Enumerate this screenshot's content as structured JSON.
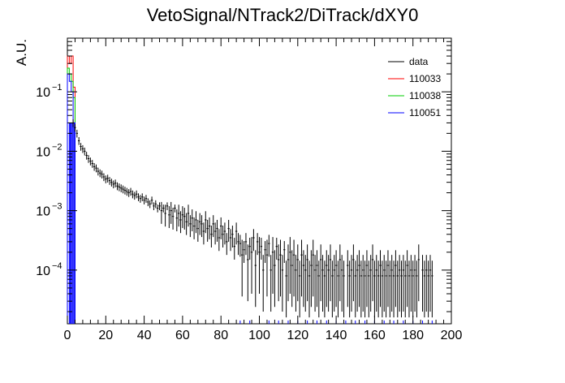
{
  "chart_data": {
    "type": "scatter",
    "title": "VetoSignal/NTrack2/DiTrack/dXY0",
    "xlabel": "",
    "ylabel": "A.U.",
    "xlim": [
      0,
      200
    ],
    "ylim": [
      1.25e-05,
      0.8
    ],
    "yscale": "log",
    "x_ticks": [
      "0",
      "20",
      "40",
      "60",
      "80",
      "100",
      "120",
      "140",
      "160",
      "180",
      "200"
    ],
    "y_ticks": [
      {
        "value": 0.1,
        "base": "10",
        "exp": "−1"
      },
      {
        "value": 0.01,
        "base": "10",
        "exp": "−2"
      },
      {
        "value": 0.001,
        "base": "10",
        "exp": "−3"
      },
      {
        "value": 0.0001,
        "base": "10",
        "exp": "−4"
      }
    ],
    "legend_position": "top-right",
    "legend": [
      {
        "name": "data",
        "color": "#000000"
      },
      {
        "name": "110033",
        "color": "#ff0000"
      },
      {
        "name": "110038",
        "color": "#00cc00"
      },
      {
        "name": "110051",
        "color": "#0000ff"
      }
    ],
    "series": [
      {
        "name": "data",
        "color": "#000000",
        "style": "errorbar",
        "points": [
          [
            3,
            0.03
          ],
          [
            4,
            0.025
          ],
          [
            5,
            0.02
          ],
          [
            6,
            0.015
          ],
          [
            7,
            0.012
          ],
          [
            8,
            0.011
          ],
          [
            9,
            0.01
          ],
          [
            10,
            0.0085
          ],
          [
            11,
            0.0075
          ],
          [
            12,
            0.0068
          ],
          [
            13,
            0.0062
          ],
          [
            14,
            0.0055
          ],
          [
            15,
            0.0052
          ],
          [
            16,
            0.0046
          ],
          [
            17,
            0.0043
          ],
          [
            18,
            0.0041
          ],
          [
            19,
            0.0037
          ],
          [
            20,
            0.0034
          ],
          [
            21,
            0.0035
          ],
          [
            22,
            0.0032
          ],
          [
            23,
            0.003
          ],
          [
            24,
            0.0028
          ],
          [
            25,
            0.0029
          ],
          [
            26,
            0.0026
          ],
          [
            27,
            0.0025
          ],
          [
            28,
            0.0024
          ],
          [
            29,
            0.0023
          ],
          [
            30,
            0.0022
          ],
          [
            31,
            0.0021
          ],
          [
            32,
            0.002
          ],
          [
            33,
            0.0021
          ],
          [
            34,
            0.0019
          ],
          [
            35,
            0.0018
          ],
          [
            36,
            0.0019
          ],
          [
            37,
            0.0017
          ],
          [
            38,
            0.0016
          ],
          [
            39,
            0.0017
          ],
          [
            40,
            0.0015
          ],
          [
            41,
            0.0016
          ],
          [
            42,
            0.0014
          ],
          [
            43,
            0.0013
          ],
          [
            44,
            0.0015
          ],
          [
            45,
            0.0012
          ],
          [
            46,
            0.0013
          ],
          [
            47,
            0.0011
          ],
          [
            48,
            0.0012
          ],
          [
            49,
            0.001
          ],
          [
            50,
            0.0011
          ],
          [
            51,
            0.0009
          ],
          [
            52,
            0.0012
          ],
          [
            53,
            0.00085
          ],
          [
            54,
            0.001
          ],
          [
            55,
            0.0008
          ],
          [
            56,
            0.0011
          ],
          [
            57,
            0.00075
          ],
          [
            58,
            0.0009
          ],
          [
            59,
            0.0007
          ],
          [
            60,
            0.00085
          ],
          [
            61,
            0.0008
          ],
          [
            62,
            0.00065
          ],
          [
            63,
            0.0009
          ],
          [
            64,
            0.0006
          ],
          [
            65,
            0.00075
          ],
          [
            66,
            0.00055
          ],
          [
            67,
            0.0007
          ],
          [
            68,
            0.0005
          ],
          [
            69,
            0.00065
          ],
          [
            70,
            0.0006
          ],
          [
            71,
            0.00045
          ],
          [
            72,
            0.0007
          ],
          [
            73,
            0.0005
          ],
          [
            74,
            0.00055
          ],
          [
            75,
            0.0004
          ],
          [
            76,
            0.0006
          ],
          [
            77,
            0.00045
          ],
          [
            78,
            0.0005
          ],
          [
            79,
            0.00035
          ],
          [
            80,
            0.00055
          ],
          [
            81,
            0.0004
          ],
          [
            82,
            0.00045
          ],
          [
            83,
            0.0003
          ],
          [
            84,
            0.0005
          ],
          [
            85,
            0.00035
          ],
          [
            86,
            0.0004
          ],
          [
            87,
            0.00025
          ],
          [
            88,
            0.00045
          ],
          [
            89,
            0.0003
          ],
          [
            90,
            0.00028
          ],
          [
            91,
            0.00018
          ],
          [
            92,
            0.00022
          ],
          [
            93,
            0.0003
          ],
          [
            94,
            0.00015
          ],
          [
            95,
            0.00025
          ],
          [
            96,
            0.0002
          ],
          [
            97,
            0.00035
          ],
          [
            98,
            0.00012
          ],
          [
            99,
            0.0003
          ],
          [
            100,
            0.0002
          ],
          [
            101,
            0.00025
          ],
          [
            102,
            0.0001
          ],
          [
            103,
            0.00022
          ],
          [
            104,
            0.00018
          ],
          [
            105,
            0.00028
          ],
          [
            106,
            0.0001
          ],
          [
            107,
            0.0002
          ],
          [
            108,
            0.00012
          ],
          [
            109,
            0.00025
          ],
          [
            110,
            0.00015
          ],
          [
            111,
            0.00018
          ],
          [
            112,
            0.0001
          ],
          [
            113,
            0.00022
          ],
          [
            114,
            8e-05
          ],
          [
            115,
            0.00015
          ],
          [
            116,
            0.0002
          ],
          [
            117,
            0.00012
          ],
          [
            118,
            0.00018
          ],
          [
            119,
            0.0001
          ],
          [
            120,
            0.00015
          ],
          [
            121,
            8e-05
          ],
          [
            122,
            0.00018
          ],
          [
            123,
            0.00012
          ],
          [
            124,
            0.0001
          ],
          [
            125,
            0.00015
          ],
          [
            126,
            8e-05
          ],
          [
            127,
            0.00012
          ],
          [
            128,
            0.00018
          ],
          [
            129,
            0.0001
          ],
          [
            130,
            0.00012
          ],
          [
            131,
            8e-05
          ],
          [
            132,
            0.00015
          ],
          [
            133,
            0.0001
          ],
          [
            134,
            8e-05
          ],
          [
            135,
            0.00012
          ],
          [
            136,
            0.0001
          ],
          [
            137,
            0.00015
          ],
          [
            138,
            8e-05
          ],
          [
            139,
            0.0001
          ],
          [
            140,
            0.00012
          ],
          [
            141,
            8e-05
          ],
          [
            142,
            0.00015
          ],
          [
            143,
            0.0001
          ],
          [
            144,
            8e-05
          ],
          [
            146,
            0.00012
          ],
          [
            147,
            8e-05
          ],
          [
            148,
            0.0001
          ],
          [
            149,
            0.00015
          ],
          [
            150,
            8e-05
          ],
          [
            151,
            0.0001
          ],
          [
            152,
            0.00012
          ],
          [
            153,
            8e-05
          ],
          [
            154,
            0.0001
          ],
          [
            155,
            8e-05
          ],
          [
            156,
            0.00012
          ],
          [
            157,
            8e-05
          ],
          [
            158,
            0.0001
          ],
          [
            159,
            0.00015
          ],
          [
            160,
            8e-05
          ],
          [
            161,
            0.0001
          ],
          [
            162,
            8e-05
          ],
          [
            163,
            0.00012
          ],
          [
            164,
            8e-05
          ],
          [
            165,
            0.0001
          ],
          [
            166,
            8e-05
          ],
          [
            167,
            0.00012
          ],
          [
            168,
            8e-05
          ],
          [
            169,
            0.0001
          ],
          [
            170,
            8e-05
          ],
          [
            171,
            0.00012
          ],
          [
            172,
            8e-05
          ],
          [
            173,
            0.0001
          ],
          [
            174,
            8e-05
          ],
          [
            175,
            0.0001
          ],
          [
            176,
            8e-05
          ],
          [
            177,
            0.00012
          ],
          [
            178,
            8e-05
          ],
          [
            179,
            0.0001
          ],
          [
            180,
            8e-05
          ],
          [
            181,
            0.0001
          ],
          [
            182,
            8e-05
          ],
          [
            183,
            0.00015
          ],
          [
            185,
            0.0001
          ],
          [
            186,
            8e-05
          ],
          [
            187,
            0.0001
          ],
          [
            188,
            8e-05
          ],
          [
            189,
            0.0001
          ],
          [
            190,
            8e-05
          ]
        ]
      },
      {
        "name": "110033",
        "color": "#ff0000",
        "style": "step",
        "points": [
          [
            1,
            0.4
          ],
          [
            2,
            0.3
          ],
          [
            3,
            0.4
          ],
          [
            4,
            0.12
          ]
        ]
      },
      {
        "name": "110038",
        "color": "#00cc00",
        "style": "step",
        "points": [
          [
            1,
            0.25
          ],
          [
            2,
            0.2
          ],
          [
            3,
            0.15
          ],
          [
            4,
            0.08
          ]
        ]
      },
      {
        "name": "110051",
        "color": "#0000ff",
        "style": "step",
        "points": [
          [
            1,
            0.2
          ],
          [
            2,
            0.15
          ],
          [
            3,
            0.1
          ],
          [
            4,
            0.03
          ]
        ]
      }
    ],
    "grid": false
  }
}
